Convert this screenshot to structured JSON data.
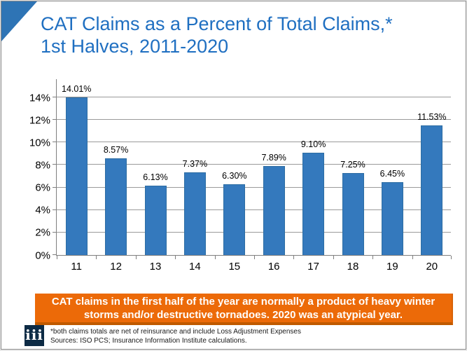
{
  "slide": {
    "title": "CAT Claims as a Percent of Total Claims,*\n1st Halves, 2011-2020"
  },
  "chart_data": {
    "type": "bar",
    "title": "CAT Claims as a Percent of Total Claims, 1st Halves, 2011-2020",
    "categories": [
      "11",
      "12",
      "13",
      "14",
      "15",
      "16",
      "17",
      "18",
      "19",
      "20"
    ],
    "values": [
      14.01,
      8.57,
      6.13,
      7.37,
      6.3,
      7.89,
      9.1,
      7.25,
      6.45,
      11.53
    ],
    "data_labels": [
      "14.01%",
      "8.57%",
      "6.13%",
      "7.37%",
      "6.30%",
      "7.89%",
      "9.10%",
      "7.25%",
      "6.45%",
      "11.53%"
    ],
    "xlabel": "",
    "ylabel": "",
    "ylim": [
      0,
      14
    ],
    "ytick_step": 2,
    "ytick_labels": [
      "0%",
      "2%",
      "4%",
      "6%",
      "8%",
      "10%",
      "12%",
      "14%"
    ],
    "grid": true,
    "legend": "none",
    "bar_color": "#3479bd",
    "bar_border_color": "#2d6da3",
    "gridline_color": "#9a9a9a"
  },
  "callout": {
    "text": "CAT claims in the first half of the year are normally a product of heavy winter storms and/or destructive tornadoes. 2020 was an atypical year.",
    "bg_color": "#ec6a08",
    "text_color": "#ffffff"
  },
  "footer": {
    "logo_text": "iii",
    "footnotes": "*both claims totals are net of reinsurance and include Loss Adjustment Expenses\nSources: ISO PCS; Insurance Information Institute calculations."
  },
  "colors": {
    "title_blue": "#1f6fc1",
    "corner_triangle_blue": "#2e74b5",
    "logo_navy": "#0d2b45"
  }
}
